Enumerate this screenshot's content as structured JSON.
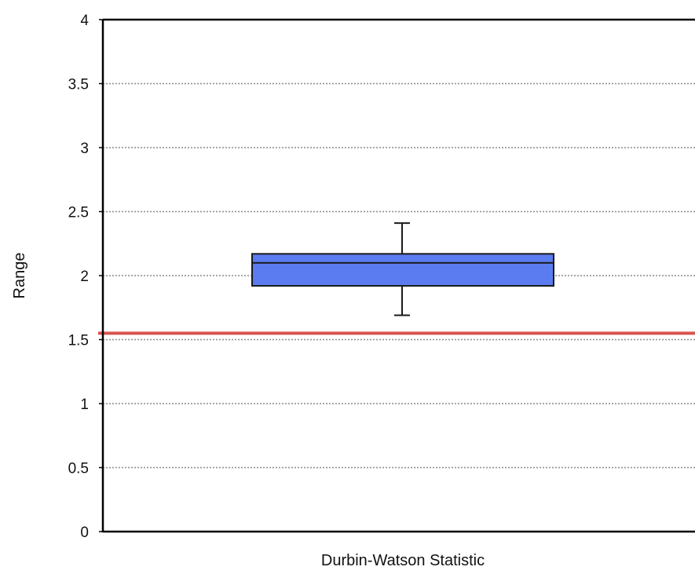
{
  "chart_data": {
    "type": "box",
    "ylabel": "Range",
    "xlabel": "",
    "ylim": [
      0,
      4
    ],
    "yticks": [
      0,
      0.5,
      1,
      1.5,
      2,
      2.5,
      3,
      3.5,
      4
    ],
    "ytick_labels": [
      "0",
      "0.5",
      "1",
      "1.5",
      "2",
      "2.5",
      "3",
      "3.5",
      "4"
    ],
    "grid": true,
    "categories": [
      "Durbin-Watson Statistic"
    ],
    "boxes": [
      {
        "category": "Durbin-Watson Statistic",
        "whisker_low": 1.69,
        "q1": 1.92,
        "median": 2.1,
        "q3": 2.17,
        "whisker_high": 2.41
      }
    ],
    "reference_line": {
      "y": 1.55
    },
    "colors": {
      "box_fill": "#5b7cf0",
      "box_stroke": "#1a1a1a",
      "reference_line": "#d9534f",
      "grid": "#8a8a8a",
      "axis": "#000000"
    }
  }
}
